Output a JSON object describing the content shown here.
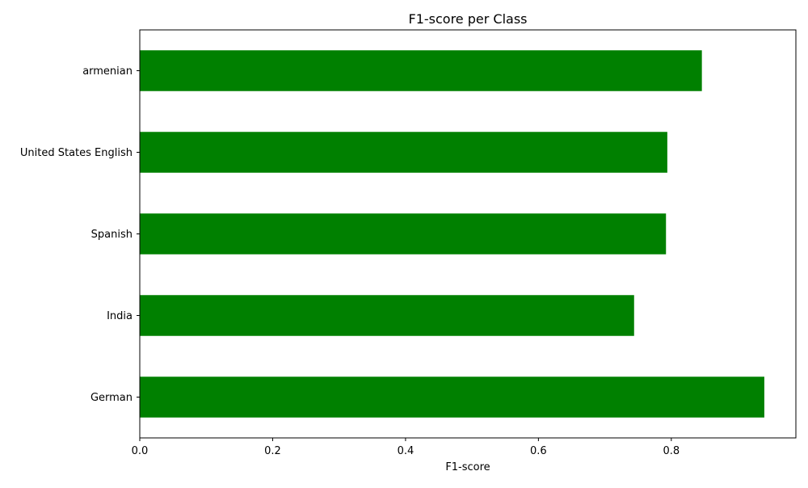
{
  "chart_data": {
    "type": "bar",
    "orientation": "horizontal",
    "title": "F1-score per Class",
    "xlabel": "F1-score",
    "ylabel": "",
    "categories": [
      "German",
      "India",
      "Spanish",
      "United States English",
      "armenian"
    ],
    "values": [
      0.94,
      0.744,
      0.792,
      0.794,
      0.846
    ],
    "xlim": [
      0.0,
      0.9875
    ],
    "xticks": [
      0.0,
      0.2,
      0.4,
      0.6,
      0.8
    ],
    "xtick_labels": [
      "0.0",
      "0.2",
      "0.4",
      "0.6",
      "0.8"
    ],
    "bar_color": "#008000",
    "grid": false,
    "legend": "none"
  }
}
